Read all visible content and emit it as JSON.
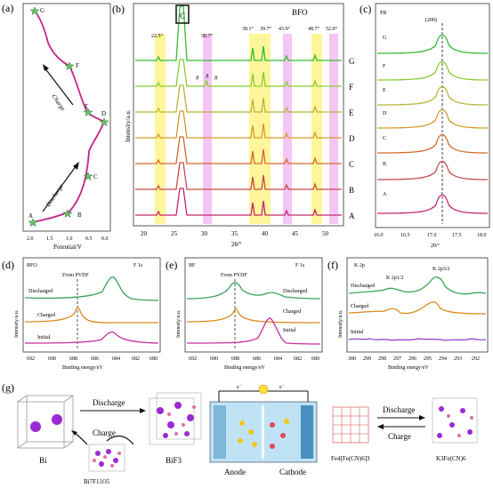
{
  "panels": {
    "a": {
      "label": "(a)",
      "xlabel": "Potential/V",
      "xticks": [
        "2.0",
        "1.5",
        "1.0",
        "0.5",
        "0.0"
      ],
      "points": [
        "A",
        "B",
        "C",
        "D",
        "E",
        "F",
        "G"
      ],
      "charge_text": "Charge",
      "discharge_text": "Discharge"
    },
    "b": {
      "label": "(b)",
      "title": "BFO",
      "ylabel": "Intensity/a.u.",
      "xlabel": "2θ/°",
      "xticks": [
        "20",
        "25",
        "30",
        "35",
        "40",
        "45",
        "50"
      ],
      "peaks": [
        "22.5°",
        "30.7°",
        "38.1°",
        "39.7°",
        "43.9°",
        "48.7°",
        "52.0°"
      ],
      "c_marker": "C",
      "hash": "#",
      "curves": [
        "G",
        "F",
        "E",
        "D",
        "C",
        "B",
        "A"
      ]
    },
    "c": {
      "label": "(c)",
      "title": "PB",
      "peak": "(200)",
      "xlabel": "2θ/°",
      "xticks": [
        "16.0",
        "16.5",
        "17.0",
        "17.5",
        "18.0"
      ],
      "curves": [
        "G",
        "F",
        "E",
        "D",
        "C",
        "B",
        "A"
      ]
    },
    "d": {
      "label": "(d)",
      "title": "BFO",
      "element": "F 1s",
      "annotation": "From PVDF",
      "ylabel": "Intensity/a.u.",
      "xlabel": "Binding energy/eV",
      "xticks": [
        "692",
        "690",
        "688",
        "686",
        "684",
        "682",
        "680"
      ],
      "curves": [
        "Discharged",
        "Charged",
        "Initial"
      ]
    },
    "e": {
      "label": "(e)",
      "title": "BF",
      "element": "F 1s",
      "annotation": "From PVDF",
      "ylabel": "Intensity/a.u.",
      "xlabel": "Binding energy/eV",
      "xticks": [
        "692",
        "690",
        "688",
        "686",
        "684",
        "682",
        "680"
      ],
      "curves": [
        "Discharged",
        "Charged",
        "Initial"
      ]
    },
    "f": {
      "label": "(f)",
      "title": "K 2p",
      "peak1": "K 2p1/2",
      "peak2": "K 2p3/2",
      "ylabel": "Intensity/a.u.",
      "xlabel": "Binding energy/eV",
      "xticks": [
        "300",
        "299",
        "298",
        "297",
        "296",
        "295",
        "294",
        "293",
        "292"
      ],
      "curves": [
        "Discharged",
        "Charged",
        "Initial"
      ]
    },
    "g": {
      "label": "(g)",
      "discharge": "Discharge",
      "charge": "Charge",
      "bi": "Bi",
      "bif3": "BiF3",
      "bi7f11o5": "Bi7F11O5",
      "anode": "Anode",
      "cathode": "Cathode",
      "fe4": "Fe4[Fe(CN)6]3",
      "k3": "K3Fe(CN)6",
      "discharge2": "Discharge",
      "charge2": "Charge",
      "electron": "e⁻"
    }
  },
  "colors": {
    "G": "#33bb33",
    "F": "#88cc33",
    "E": "#b9b43a",
    "D": "#d59a2a",
    "C": "#d46a2c",
    "B": "#c84a4a",
    "A": "#c4266e",
    "magenta": "#c3248a",
    "yellow": "#fff48a",
    "pink": "#f0b3f0"
  }
}
